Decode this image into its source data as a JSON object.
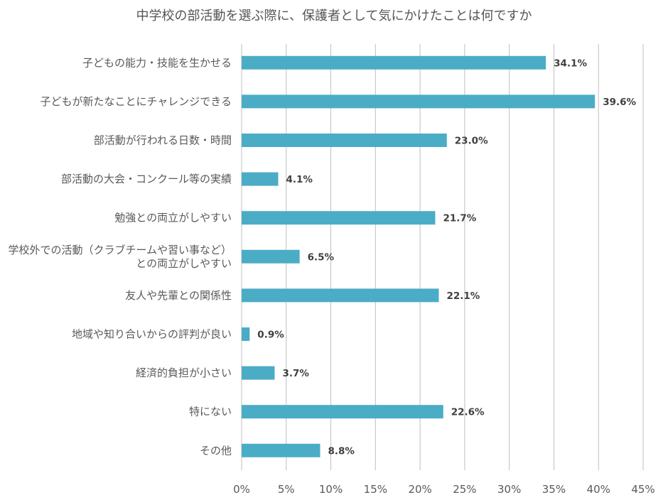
{
  "chart_data": {
    "type": "bar",
    "orientation": "horizontal",
    "title": "中学校の部活動を選ぶ際に、保護者として気にかけたことは何ですか",
    "categories": [
      [
        "子どもの能力・技能を生かせる"
      ],
      [
        "子どもが新たなことにチャレンジできる"
      ],
      [
        "部活動が行われる日数・時間"
      ],
      [
        "部活動の大会・コンクール等の実績"
      ],
      [
        "勉強との両立がしやすい"
      ],
      [
        "学校外での活動（クラブチームや習い事など）",
        "との両立がしやすい"
      ],
      [
        "友人や先輩との関係性"
      ],
      [
        "地域や知り合いからの評判が良い"
      ],
      [
        "経済的負担が小さい"
      ],
      [
        "特にない"
      ],
      [
        "その他"
      ]
    ],
    "values": [
      34.1,
      39.6,
      23.0,
      4.1,
      21.7,
      6.5,
      22.1,
      0.9,
      3.7,
      22.6,
      8.8
    ],
    "value_labels": [
      "34.1%",
      "39.6%",
      "23.0%",
      "4.1%",
      "21.7%",
      "6.5%",
      "22.1%",
      "0.9%",
      "3.7%",
      "22.6%",
      "8.8%"
    ],
    "xlim": [
      0,
      45
    ],
    "xticks": [
      "0%",
      "5%",
      "10%",
      "15%",
      "20%",
      "25%",
      "30%",
      "35%",
      "40%",
      "45%"
    ],
    "xlabel": "",
    "ylabel": "",
    "grid": true,
    "legend": "none",
    "bar_color": "#4BACC6",
    "grid_color": "#BFBFBF",
    "text_color": "#595959",
    "label_color": "#404040"
  }
}
